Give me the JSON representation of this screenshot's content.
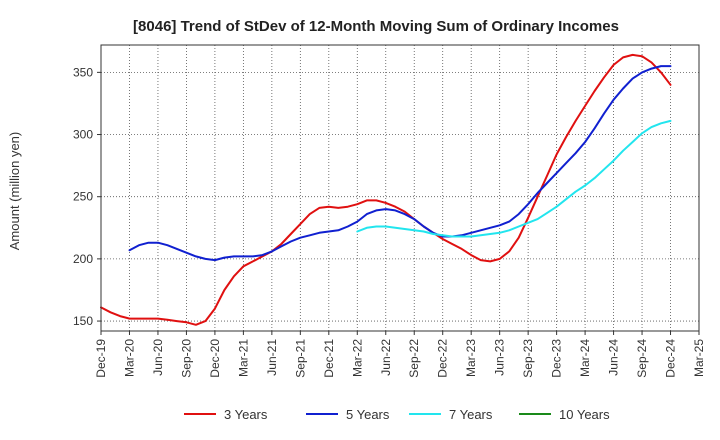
{
  "chart_data": {
    "type": "line",
    "title": "[8046]  Trend of StDev of 12-Month Moving Sum of Ordinary Incomes",
    "xlabel": "",
    "ylabel": "Amount (million yen)",
    "ylim": [
      142,
      372
    ],
    "yticks": [
      150,
      200,
      250,
      300,
      350
    ],
    "x_tick_labels": [
      "Dec-19",
      "Mar-20",
      "Jun-20",
      "Sep-20",
      "Dec-20",
      "Mar-21",
      "Jun-21",
      "Sep-21",
      "Dec-21",
      "Mar-22",
      "Jun-22",
      "Sep-22",
      "Dec-22",
      "Mar-23",
      "Jun-23",
      "Sep-23",
      "Dec-23",
      "Mar-24",
      "Jun-24",
      "Sep-24",
      "Dec-24",
      "Mar-25"
    ],
    "x_unit": "months since Dec-19",
    "x_range": [
      0,
      63
    ],
    "grid": true,
    "legend_position": "bottom",
    "series": [
      {
        "name": "3 Years",
        "color": "#e01010",
        "x": [
          0,
          1,
          2,
          3,
          4,
          5,
          6,
          7,
          8,
          9,
          10,
          11,
          12,
          13,
          14,
          15,
          16,
          17,
          18,
          19,
          20,
          21,
          22,
          23,
          24,
          25,
          26,
          27,
          28,
          29,
          30,
          31,
          32,
          33,
          34,
          35,
          36,
          37,
          38,
          39,
          40,
          41,
          42,
          43,
          44,
          45,
          46,
          47,
          48,
          49,
          50,
          51,
          52,
          53,
          54,
          55,
          56,
          57,
          58,
          59,
          60
        ],
        "values": [
          161,
          157,
          154,
          152,
          152,
          152,
          152,
          151,
          150,
          149,
          147,
          150,
          160,
          175,
          186,
          194,
          198,
          202,
          206,
          212,
          220,
          228,
          236,
          241,
          242,
          241,
          242,
          244,
          247,
          247,
          245,
          242,
          238,
          232,
          226,
          221,
          216,
          212,
          208,
          203,
          199,
          198,
          200,
          206,
          217,
          233,
          250,
          267,
          284,
          298,
          311,
          323,
          335,
          346,
          356,
          362,
          364,
          363,
          358,
          350,
          340
        ]
      },
      {
        "name": "5 Years",
        "color": "#1020d0",
        "x": [
          3,
          4,
          5,
          6,
          7,
          8,
          9,
          10,
          11,
          12,
          13,
          14,
          15,
          16,
          17,
          18,
          19,
          20,
          21,
          22,
          23,
          24,
          25,
          26,
          27,
          28,
          29,
          30,
          31,
          32,
          33,
          34,
          35,
          36,
          37,
          38,
          39,
          40,
          41,
          42,
          43,
          44,
          45,
          46,
          47,
          48,
          49,
          50,
          51,
          52,
          53,
          54,
          55,
          56,
          57,
          58,
          59,
          60
        ],
        "values": [
          207,
          211,
          213,
          213,
          211,
          208,
          205,
          202,
          200,
          199,
          201,
          202,
          202,
          202,
          203,
          206,
          210,
          214,
          217,
          219,
          221,
          222,
          223,
          226,
          230,
          236,
          239,
          240,
          239,
          236,
          232,
          226,
          221,
          218,
          218,
          219,
          221,
          223,
          225,
          227,
          230,
          236,
          244,
          253,
          261,
          269,
          277,
          285,
          294,
          305,
          317,
          328,
          337,
          345,
          350,
          353,
          355,
          355
        ]
      },
      {
        "name": "7 Years",
        "color": "#22e5ee",
        "x": [
          27,
          28,
          29,
          30,
          31,
          32,
          33,
          34,
          35,
          36,
          37,
          38,
          39,
          40,
          41,
          42,
          43,
          44,
          45,
          46,
          47,
          48,
          49,
          50,
          51,
          52,
          53,
          54,
          55,
          56,
          57,
          58,
          59,
          60
        ],
        "values": [
          222,
          225,
          226,
          226,
          225,
          224,
          223,
          222,
          220,
          219,
          218,
          218,
          218,
          219,
          220,
          221,
          223,
          226,
          229,
          232,
          237,
          242,
          248,
          254,
          259,
          265,
          272,
          279,
          287,
          294,
          301,
          306,
          309,
          311
        ]
      },
      {
        "name": "10 Years",
        "color": "#1a8a1a",
        "x": [],
        "values": []
      }
    ]
  }
}
